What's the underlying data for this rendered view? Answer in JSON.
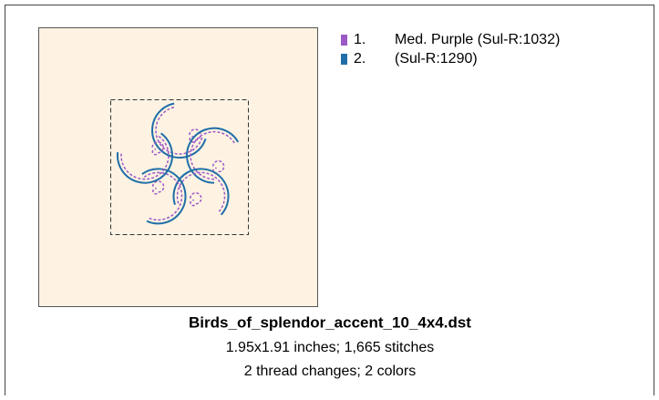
{
  "threads": [
    {
      "number": "1.",
      "name": "Med. Purple (Sul-R:1032)",
      "color": "#9b59c6"
    },
    {
      "number": "2.",
      "name": "(Sul-R:1290)",
      "color": "#1f6ea8"
    }
  ],
  "caption": {
    "filename": "Birds_of_splendor_accent_10_4x4.dst",
    "size_line": "1.95x1.91 inches; 1,665 stitches",
    "changes_line": "2 thread changes; 2 colors"
  }
}
